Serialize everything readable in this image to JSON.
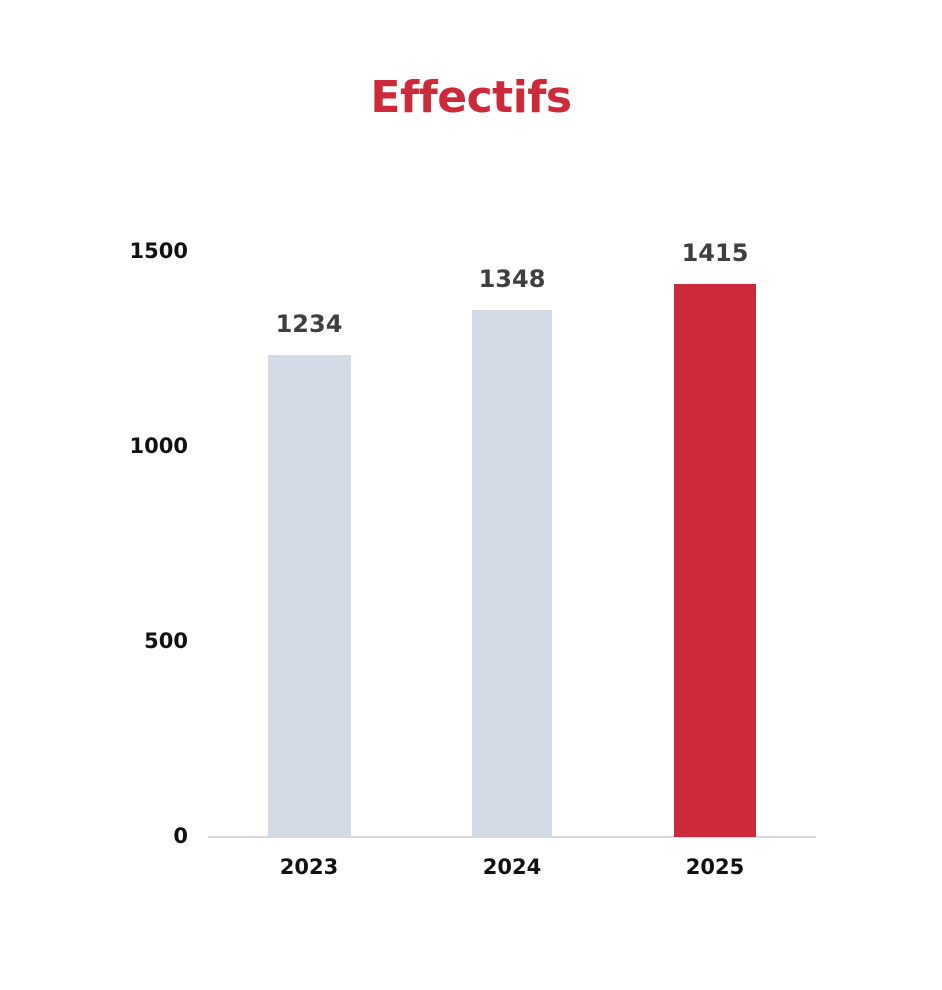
{
  "title": "Effectifs",
  "colors": {
    "title": "#cc2a3a",
    "bar_default": "#d3dae5",
    "bar_highlight": "#cc2a3a",
    "axis": "#d9d9dd"
  },
  "y_ticks": [
    "0",
    "500",
    "1000",
    "1500"
  ],
  "bars": [
    {
      "category": "2023",
      "value": 1234,
      "label": "1234",
      "highlight": false
    },
    {
      "category": "2024",
      "value": 1348,
      "label": "1348",
      "highlight": false
    },
    {
      "category": "2025",
      "value": 1415,
      "label": "1415",
      "highlight": true
    }
  ],
  "chart_data": {
    "type": "bar",
    "title": "Effectifs",
    "categories": [
      "2023",
      "2024",
      "2025"
    ],
    "values": [
      1234,
      1348,
      1415
    ],
    "xlabel": "",
    "ylabel": "",
    "ylim": [
      0,
      1500
    ],
    "yticks": [
      0,
      500,
      1000,
      1500
    ],
    "grid": false,
    "legend": null,
    "data_labels": true,
    "highlighted_category": "2025"
  }
}
